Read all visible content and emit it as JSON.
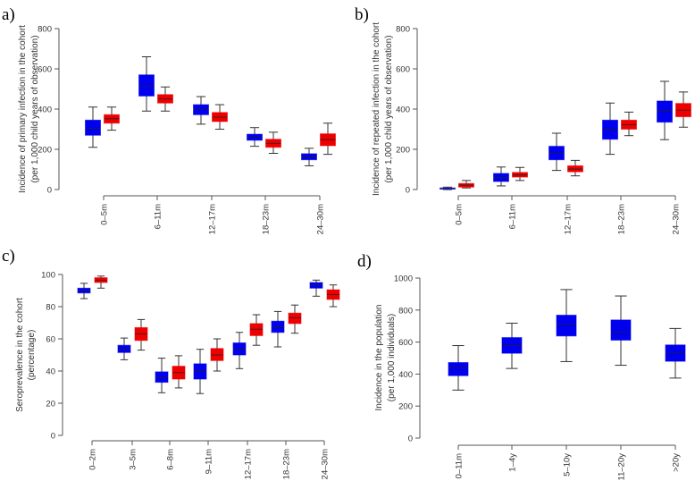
{
  "colors": {
    "series1": "#0000ee",
    "series2": "#ee0000",
    "axis": "#555555",
    "whisker": "#333333"
  },
  "chart_data": [
    {
      "type": "box",
      "panel_label": "a)",
      "ylabel": [
        "Incidence of primary infection in the cohort",
        "(per 1,000 child years of observation)"
      ],
      "ylim": [
        0,
        800
      ],
      "yticks": [
        0,
        200,
        400,
        600,
        800
      ],
      "categories": [
        "0–5m",
        "6–11m",
        "12–17m",
        "18–23m",
        "24–30m"
      ],
      "series": [
        {
          "name": "blue",
          "boxes": [
            {
              "min": 210,
              "q1": 270,
              "median": 305,
              "q3": 345,
              "max": 410
            },
            {
              "min": 390,
              "q1": 465,
              "median": 515,
              "q3": 570,
              "max": 660
            },
            {
              "min": 325,
              "q1": 372,
              "median": 400,
              "q3": 422,
              "max": 462
            },
            {
              "min": 215,
              "q1": 245,
              "median": 260,
              "q3": 275,
              "max": 308
            },
            {
              "min": 118,
              "q1": 148,
              "median": 162,
              "q3": 178,
              "max": 205
            }
          ]
        },
        {
          "name": "red",
          "boxes": [
            {
              "min": 295,
              "q1": 330,
              "median": 352,
              "q3": 372,
              "max": 410
            },
            {
              "min": 390,
              "q1": 430,
              "median": 450,
              "q3": 472,
              "max": 510
            },
            {
              "min": 300,
              "q1": 338,
              "median": 360,
              "q3": 383,
              "max": 422
            },
            {
              "min": 180,
              "q1": 210,
              "median": 230,
              "q3": 250,
              "max": 285
            },
            {
              "min": 175,
              "q1": 218,
              "median": 248,
              "q3": 277,
              "max": 330
            }
          ]
        }
      ]
    },
    {
      "type": "box",
      "panel_label": "b)",
      "ylabel": [
        "Incidence of repeated infection in the cohort",
        "(per 1,000 child years of observation)"
      ],
      "ylim": [
        0,
        800
      ],
      "yticks": [
        0,
        200,
        400,
        600,
        800
      ],
      "categories": [
        "0–5m",
        "6–11m",
        "12–17m",
        "18–23m",
        "24–30m"
      ],
      "series": [
        {
          "name": "blue",
          "boxes": [
            {
              "min": 0,
              "q1": 2,
              "median": 5,
              "q3": 8,
              "max": 12
            },
            {
              "min": 18,
              "q1": 40,
              "median": 58,
              "q3": 80,
              "max": 112
            },
            {
              "min": 95,
              "q1": 148,
              "median": 180,
              "q3": 215,
              "max": 280
            },
            {
              "min": 175,
              "q1": 250,
              "median": 298,
              "q3": 345,
              "max": 430
            },
            {
              "min": 248,
              "q1": 335,
              "median": 392,
              "q3": 440,
              "max": 538
            }
          ]
        },
        {
          "name": "red",
          "boxes": [
            {
              "min": 8,
              "q1": 12,
              "median": 22,
              "q3": 30,
              "max": 45
            },
            {
              "min": 45,
              "q1": 62,
              "median": 72,
              "q3": 85,
              "max": 110
            },
            {
              "min": 68,
              "q1": 88,
              "median": 102,
              "q3": 118,
              "max": 145
            },
            {
              "min": 268,
              "q1": 300,
              "median": 322,
              "q3": 345,
              "max": 385
            },
            {
              "min": 310,
              "q1": 362,
              "median": 395,
              "q3": 428,
              "max": 485
            }
          ]
        }
      ]
    },
    {
      "type": "box",
      "panel_label": "c)",
      "ylabel": [
        "Seroprevalence in the cohort",
        "(percentage)"
      ],
      "ylim": [
        0,
        100
      ],
      "yticks": [
        0,
        20,
        40,
        60,
        80,
        100
      ],
      "categories": [
        "0–2m",
        "3–5m",
        "6–8m",
        "9–11m",
        "12–17m",
        "18–23m",
        "24–30m"
      ],
      "series": [
        {
          "name": "blue",
          "boxes": [
            {
              "min": 85,
              "q1": 88.5,
              "median": 90,
              "q3": 91.5,
              "max": 94.5
            },
            {
              "min": 47,
              "q1": 51.5,
              "median": 53.5,
              "q3": 56,
              "max": 60.5
            },
            {
              "min": 26.5,
              "q1": 33,
              "median": 36,
              "q3": 39.5,
              "max": 48
            },
            {
              "min": 26,
              "q1": 35,
              "median": 40,
              "q3": 44.5,
              "max": 53.5
            },
            {
              "min": 41.5,
              "q1": 50,
              "median": 53.5,
              "q3": 57.5,
              "max": 64
            },
            {
              "min": 55,
              "q1": 64,
              "median": 67.5,
              "q3": 71,
              "max": 77
            },
            {
              "min": 86.5,
              "q1": 91.5,
              "median": 93.5,
              "q3": 95,
              "max": 96.5
            }
          ]
        },
        {
          "name": "red",
          "boxes": [
            {
              "min": 91.5,
              "q1": 95,
              "median": 96.5,
              "q3": 98,
              "max": 99
            },
            {
              "min": 53,
              "q1": 59,
              "median": 63,
              "q3": 67,
              "max": 72
            },
            {
              "min": 29.5,
              "q1": 35,
              "median": 39,
              "q3": 43,
              "max": 49.5
            },
            {
              "min": 40,
              "q1": 46.5,
              "median": 50,
              "q3": 54,
              "max": 60
            },
            {
              "min": 56,
              "q1": 62,
              "median": 66,
              "q3": 69.5,
              "max": 75
            },
            {
              "min": 63.5,
              "q1": 69.5,
              "median": 73,
              "q3": 76,
              "max": 81
            },
            {
              "min": 80,
              "q1": 84.5,
              "median": 87.5,
              "q3": 90.5,
              "max": 93.5
            }
          ]
        }
      ]
    },
    {
      "type": "box",
      "panel_label": "d)",
      "ylabel": [
        "Incidence in the population",
        "(per 1,000 individuals)"
      ],
      "ylim": [
        0,
        1000
      ],
      "yticks": [
        0,
        200,
        400,
        600,
        800,
        1000
      ],
      "categories": [
        "0–11m",
        "1–4y",
        "5–10y",
        "11–20y",
        ">20y"
      ],
      "series": [
        {
          "name": "blue",
          "boxes": [
            {
              "min": 300,
              "q1": 390,
              "median": 440,
              "q3": 472,
              "max": 578
            },
            {
              "min": 435,
              "q1": 530,
              "median": 578,
              "q3": 628,
              "max": 718
            },
            {
              "min": 478,
              "q1": 638,
              "median": 710,
              "q3": 768,
              "max": 928
            },
            {
              "min": 455,
              "q1": 612,
              "median": 662,
              "q3": 738,
              "max": 888
            },
            {
              "min": 375,
              "q1": 480,
              "median": 535,
              "q3": 582,
              "max": 685
            }
          ]
        }
      ]
    }
  ]
}
